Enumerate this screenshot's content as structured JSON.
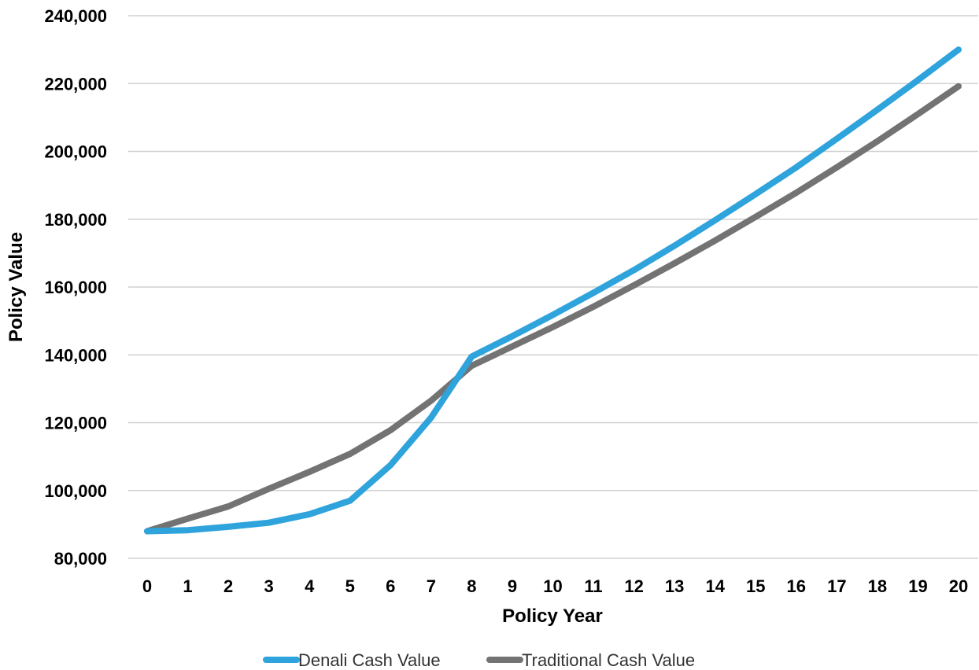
{
  "chart_data": {
    "type": "line",
    "title": "",
    "xlabel": "Policy Year",
    "ylabel": "Policy Value",
    "x": [
      0,
      1,
      2,
      3,
      4,
      5,
      6,
      7,
      8,
      9,
      10,
      11,
      12,
      13,
      14,
      15,
      16,
      17,
      18,
      19,
      20
    ],
    "ylim": [
      80000,
      240000
    ],
    "yticks": [
      80000,
      100000,
      120000,
      140000,
      160000,
      180000,
      200000,
      220000,
      240000
    ],
    "ytick_labels": [
      "80,000",
      "100,000",
      "120,000",
      "140,000",
      "160,000",
      "180,000",
      "200,000",
      "220,000",
      "240,000"
    ],
    "grid": "horizontal",
    "legend_position": "bottom",
    "series": [
      {
        "name": "Denali Cash Value",
        "color": "#2ea3dc",
        "values": [
          88000,
          88300,
          89300,
          90500,
          93000,
          97000,
          107500,
          121500,
          139500,
          145500,
          151800,
          158300,
          165000,
          172200,
          179700,
          187400,
          195300,
          203700,
          212300,
          221000,
          230000
        ]
      },
      {
        "name": "Traditional Cash Value",
        "color": "#737373",
        "values": [
          88000,
          91700,
          95300,
          100500,
          105500,
          110800,
          117800,
          126500,
          136800,
          142500,
          148200,
          154200,
          160500,
          167000,
          173700,
          180700,
          187800,
          195300,
          203000,
          211000,
          219200
        ]
      }
    ]
  }
}
